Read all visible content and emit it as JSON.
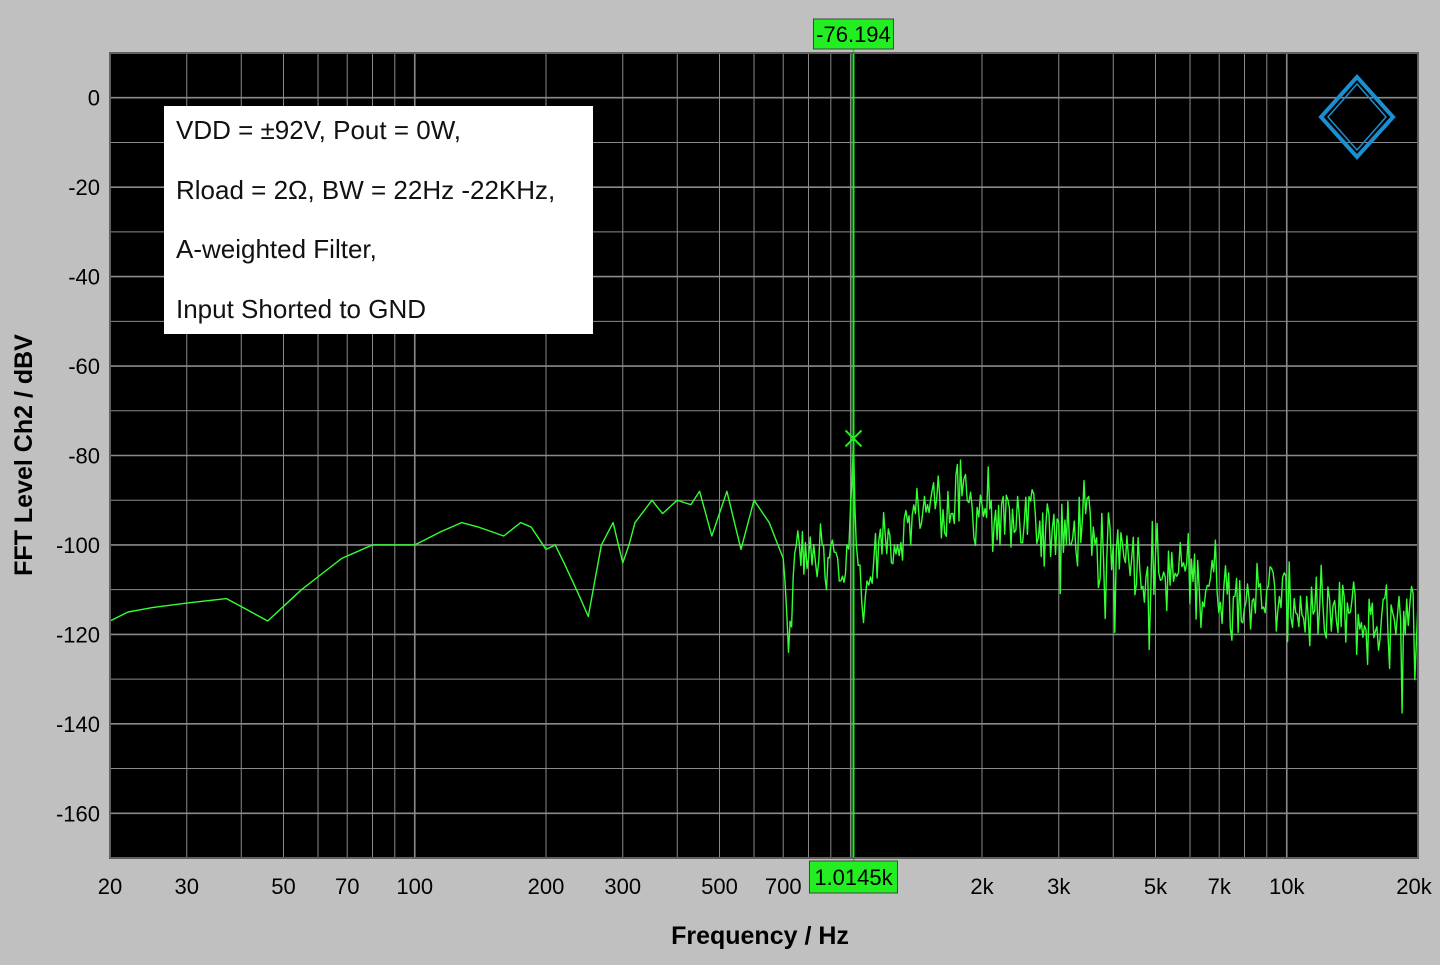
{
  "chart_data": {
    "type": "line",
    "title": "",
    "xlabel": "Frequency / Hz",
    "ylabel": "FFT Level Ch2 / dBV",
    "x_scale": "log",
    "xlim": [
      20,
      20000
    ],
    "ylim": [
      -170,
      10
    ],
    "grid": true,
    "background_color": "#000000",
    "grid_color": "#8a8a8a",
    "x_ticks": [
      {
        "value": 20,
        "label": "20"
      },
      {
        "value": 30,
        "label": "30"
      },
      {
        "value": 50,
        "label": "50"
      },
      {
        "value": 70,
        "label": "70"
      },
      {
        "value": 100,
        "label": "100"
      },
      {
        "value": 200,
        "label": "200"
      },
      {
        "value": 300,
        "label": "300"
      },
      {
        "value": 500,
        "label": "500"
      },
      {
        "value": 700,
        "label": "700"
      },
      {
        "value": 2000,
        "label": "2k"
      },
      {
        "value": 3000,
        "label": "3k"
      },
      {
        "value": 5000,
        "label": "5k"
      },
      {
        "value": 7000,
        "label": "7k"
      },
      {
        "value": 10000,
        "label": "10k"
      },
      {
        "value": 20000,
        "label": "20k"
      }
    ],
    "y_ticks": [
      {
        "value": 0,
        "label": "0"
      },
      {
        "value": -20,
        "label": "-20"
      },
      {
        "value": -40,
        "label": "-40"
      },
      {
        "value": -60,
        "label": "-60"
      },
      {
        "value": -80,
        "label": "-80"
      },
      {
        "value": -100,
        "label": "-100"
      },
      {
        "value": -120,
        "label": "-120"
      },
      {
        "value": -140,
        "label": "-140"
      },
      {
        "value": -160,
        "label": "-160"
      }
    ],
    "series": [
      {
        "color": "#33ff33",
        "x": [
          20,
          22,
          25,
          30,
          37,
          46,
          55,
          68,
          80,
          100,
          115,
          128,
          140,
          160,
          175,
          185,
          200,
          210,
          220,
          240,
          250,
          268,
          285,
          300,
          310,
          320,
          350,
          370,
          400,
          430,
          450,
          480,
          520,
          560,
          600,
          650,
          700,
          720,
          750,
          800,
          830,
          860,
          880,
          900,
          950,
          980,
          1000,
          1014.5,
          1030,
          1060,
          1100,
          1130,
          1200,
          1280,
          1350,
          1430,
          1500,
          1600,
          1700,
          1800,
          1900,
          2000,
          2100,
          2200,
          2350,
          2500,
          2650,
          2800,
          3000,
          3200,
          3400,
          3600,
          3800,
          4000,
          4300,
          4600,
          5000,
          5400,
          5800,
          6300,
          6800,
          7300,
          7800,
          8400,
          9000,
          9700,
          10400,
          11200,
          12100,
          13000,
          14000,
          15200,
          16500,
          17800,
          19000,
          20000
        ],
        "values": [
          -117,
          -115,
          -114,
          -113,
          -112,
          -117,
          -110,
          -103,
          -100,
          -100,
          -97,
          -95,
          -96,
          -98,
          -95,
          -96,
          -101,
          -100,
          -104,
          -112,
          -116,
          -100,
          -95,
          -104,
          -100,
          -95,
          -90,
          -93,
          -90,
          -91,
          -88,
          -98,
          -88,
          -101,
          -90,
          -95,
          -103,
          -124,
          -100,
          -103,
          -104,
          -100,
          -110,
          -100,
          -108,
          -100,
          -90,
          -76.2,
          -100,
          -113,
          -109,
          -103,
          -98,
          -100,
          -95,
          -92,
          -91,
          -89,
          -93,
          -89,
          -92,
          -91,
          -90,
          -100,
          -92,
          -95,
          -93,
          -96,
          -95,
          -100,
          -94,
          -96,
          -103,
          -100,
          -98,
          -105,
          -102,
          -109,
          -104,
          -110,
          -106,
          -111,
          -108,
          -112,
          -110,
          -114,
          -112,
          -116,
          -113,
          -117,
          -115,
          -119,
          -116,
          -120,
          -118,
          -113
        ]
      }
    ],
    "annotations": [
      "VDD = ±92V, Pout = 0W,",
      "Rload = 2Ω, BW = 22Hz -22KHz,",
      "A-weighted Filter,",
      "Input Shorted to GND"
    ],
    "cursor": {
      "x": 1014.5,
      "y": -76.194,
      "x_readout": "1.0145k",
      "y_readout": "-76.194",
      "readout_color": "#22ee22"
    },
    "logo_color": "#1a8fd1"
  }
}
